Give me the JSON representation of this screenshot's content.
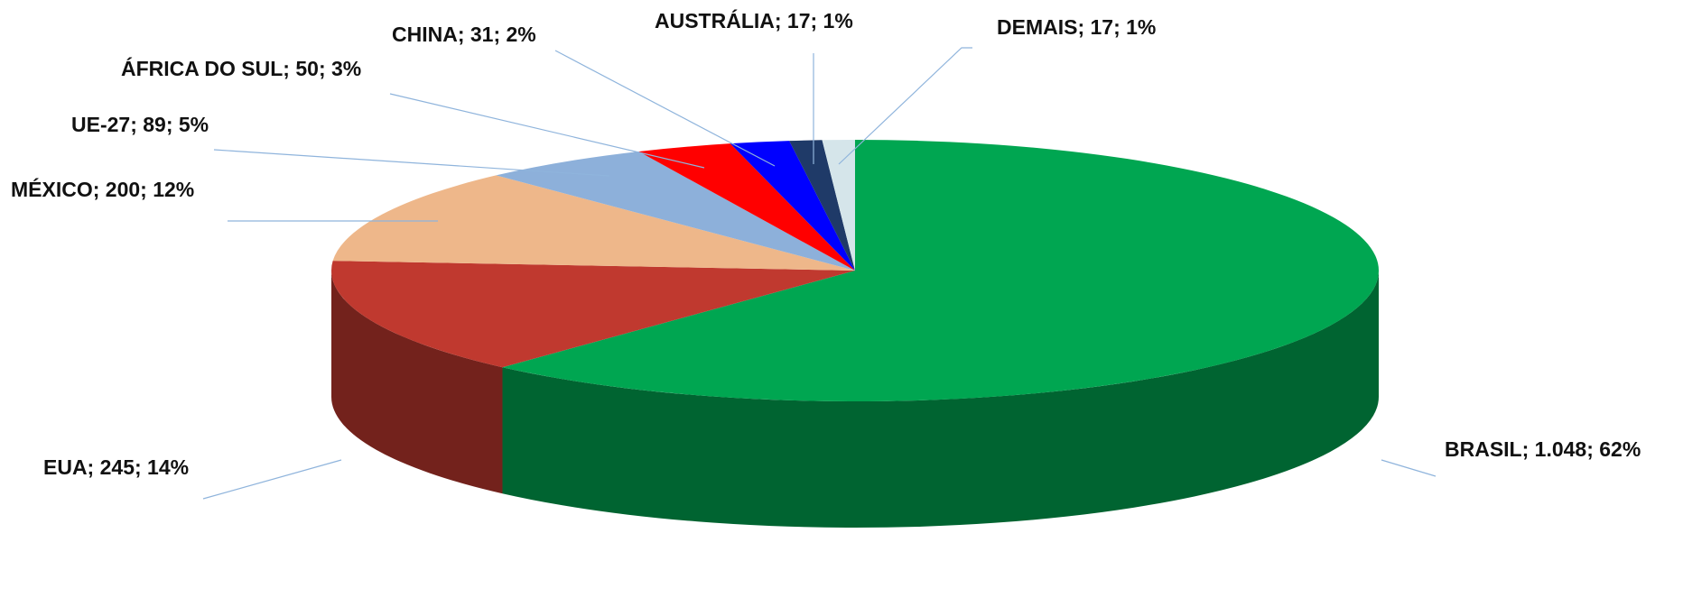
{
  "chart_data": {
    "type": "pie3d",
    "value_labels": [
      "BRASIL; 1.048; 62%",
      "EUA; 245; 14%",
      "MÉXICO; 200; 12%",
      "UE-27; 89; 5%",
      "ÁFRICA DO SUL; 50; 3%",
      "CHINA; 31; 2%",
      "AUSTRÁLIA; 17; 1%",
      "DEMAIS; 17; 1%"
    ],
    "values": [
      1048,
      245,
      200,
      89,
      50,
      31,
      17,
      17
    ],
    "colors": [
      "#00a651",
      "#c0392f",
      "#eeb78a",
      "#8db0da",
      "#ff0000",
      "#0000ff",
      "#1f3a68",
      "#d5e5ea"
    ]
  }
}
